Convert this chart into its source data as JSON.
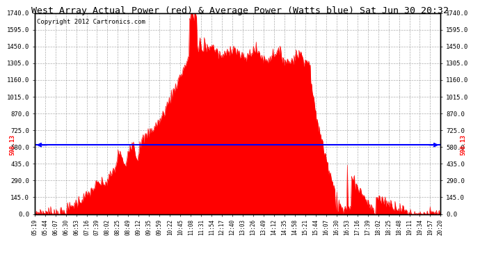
{
  "title": "West Array Actual Power (red) & Average Power (Watts blue) Sat Jun 30 20:32",
  "copyright": "Copyright 2012 Cartronics.com",
  "avg_power": 598.13,
  "ymax": 1740.0,
  "yticks": [
    0.0,
    145.0,
    290.0,
    435.0,
    580.0,
    725.0,
    870.0,
    1015.0,
    1160.0,
    1305.0,
    1450.0,
    1595.0,
    1740.0
  ],
  "fill_color": "#ff0000",
  "line_color": "#ff0000",
  "avg_line_color": "#0000ff",
  "background_color": "#ffffff",
  "grid_color": "#999999",
  "title_fontsize": 10,
  "copyright_fontsize": 7,
  "x_labels": [
    "05:19",
    "05:44",
    "06:07",
    "06:30",
    "06:53",
    "07:16",
    "07:39",
    "08:02",
    "08:25",
    "08:49",
    "09:12",
    "09:35",
    "09:59",
    "10:22",
    "10:45",
    "11:08",
    "11:31",
    "11:54",
    "12:17",
    "12:40",
    "13:03",
    "13:26",
    "13:49",
    "14:12",
    "14:35",
    "14:58",
    "15:21",
    "15:44",
    "16:07",
    "16:30",
    "16:53",
    "17:16",
    "17:39",
    "18:02",
    "18:25",
    "18:48",
    "19:11",
    "19:34",
    "19:57",
    "20:20"
  ]
}
